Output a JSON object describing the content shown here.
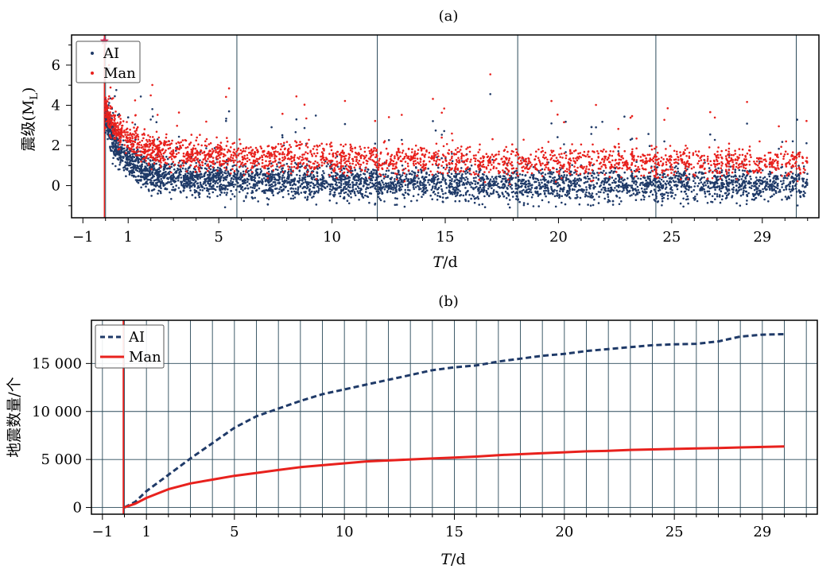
{
  "colors": {
    "ai": "#1f3a68",
    "man": "#e8211d",
    "grid": "#2b4a5a",
    "axis": "#000000"
  },
  "chart_data": [
    {
      "type": "scatter",
      "title": "(a)",
      "xlabel_italic": "T",
      "xlabel_unit": "/d",
      "ylabel": "震级(M",
      "ylabel_sub": "L",
      "ylabel_close": ")",
      "xlim": [
        -1.5,
        31.5
      ],
      "ylim": [
        -1.6,
        7.5
      ],
      "x_ticks": [
        -1,
        1,
        5,
        10,
        15,
        20,
        25,
        29
      ],
      "y_ticks": [
        0,
        2,
        4,
        6
      ],
      "vertical_lines": [
        0,
        5.8,
        12,
        18.2,
        24.3,
        30.5
      ],
      "mainshock_marker": {
        "x": -0.05,
        "y": 7.2
      },
      "legend_position": "top-left",
      "series": [
        {
          "name": "AI",
          "color": "#1f3a68",
          "marker": "dot",
          "base_trend": "decay from ~3 at T=0 to ~0 by T=5, flat near 0 afterwards",
          "approx_count": 18000
        },
        {
          "name": "Man",
          "color": "#e8211d",
          "marker": "dot",
          "base_trend": "decay from ~3.5 at T=0 to ~1.5 by T=5, flat near 1.3 afterwards",
          "approx_count": 6300
        }
      ]
    },
    {
      "type": "line",
      "title": "(b)",
      "xlabel_italic": "T",
      "xlabel_unit": "/d",
      "ylabel": "地震数量/个",
      "xlim": [
        -1.5,
        31.5
      ],
      "ylim": [
        -700,
        19500
      ],
      "x_ticks": [
        -1,
        1,
        5,
        10,
        15,
        20,
        25,
        29
      ],
      "y_ticks": [
        0,
        5000,
        10000,
        15000
      ],
      "y_tick_labels": [
        "0",
        "5 000",
        "10 000",
        "15 000"
      ],
      "grid": true,
      "mainshock_line_x": -0.05,
      "legend_position": "top-left",
      "series": [
        {
          "name": "AI",
          "color": "#1f3a68",
          "style": "dashed",
          "x": [
            0,
            0.5,
            1,
            2,
            3,
            4,
            5,
            6,
            7,
            8,
            9,
            10,
            11,
            12,
            13,
            14,
            15,
            16,
            17,
            18,
            19,
            20,
            21,
            22,
            23,
            24,
            25,
            26,
            27,
            28,
            29,
            30
          ],
          "y": [
            0,
            600,
            1700,
            3400,
            5100,
            6700,
            8300,
            9500,
            10300,
            11100,
            11800,
            12300,
            12800,
            13300,
            13800,
            14300,
            14600,
            14800,
            15200,
            15500,
            15800,
            16000,
            16300,
            16500,
            16700,
            16900,
            17000,
            17050,
            17300,
            17800,
            18000,
            18050
          ]
        },
        {
          "name": "Man",
          "color": "#e8211d",
          "style": "solid",
          "x": [
            0,
            0.5,
            1,
            2,
            3,
            4,
            5,
            6,
            7,
            8,
            9,
            10,
            11,
            12,
            13,
            14,
            15,
            16,
            17,
            18,
            19,
            20,
            21,
            22,
            23,
            24,
            25,
            26,
            27,
            28,
            29,
            30
          ],
          "y": [
            0,
            400,
            1000,
            1900,
            2500,
            2900,
            3300,
            3600,
            3900,
            4200,
            4400,
            4600,
            4800,
            4900,
            5000,
            5100,
            5200,
            5300,
            5450,
            5550,
            5650,
            5750,
            5850,
            5900,
            6000,
            6050,
            6100,
            6150,
            6200,
            6250,
            6300,
            6350
          ]
        }
      ]
    }
  ]
}
